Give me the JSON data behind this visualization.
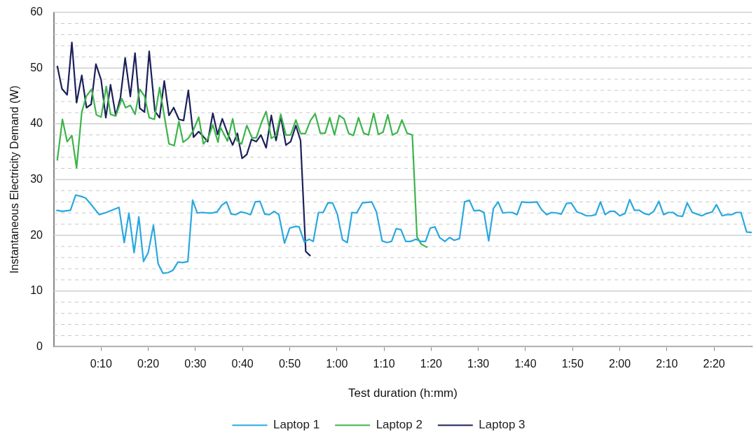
{
  "chart_data": {
    "type": "line",
    "xlabel": "Test duration (h:mm)",
    "ylabel": "Instantaneous Electricity Demand (W)",
    "xlim": [
      0,
      148
    ],
    "ylim": [
      0,
      60
    ],
    "xticks": [
      {
        "value": 10,
        "label": "0:10"
      },
      {
        "value": 20,
        "label": "0:20"
      },
      {
        "value": 30,
        "label": "0:30"
      },
      {
        "value": 40,
        "label": "0:40"
      },
      {
        "value": 50,
        "label": "0:50"
      },
      {
        "value": 60,
        "label": "1:00"
      },
      {
        "value": 70,
        "label": "1:10"
      },
      {
        "value": 80,
        "label": "1:20"
      },
      {
        "value": 90,
        "label": "1:30"
      },
      {
        "value": 100,
        "label": "1:40"
      },
      {
        "value": 110,
        "label": "1:50"
      },
      {
        "value": 120,
        "label": "2:00"
      },
      {
        "value": 130,
        "label": "2:10"
      },
      {
        "value": 140,
        "label": "2:20"
      }
    ],
    "yticks": [
      0,
      {
        "value": 2,
        "label": null
      },
      {
        "value": 4,
        "label": null
      },
      {
        "value": 6,
        "label": null
      },
      {
        "value": 8,
        "label": null
      },
      10,
      {
        "value": 12,
        "label": null
      },
      {
        "value": 14,
        "label": null
      },
      {
        "value": 16,
        "label": null
      },
      {
        "value": 18,
        "label": null
      },
      20,
      {
        "value": 22,
        "label": null
      },
      {
        "value": 24,
        "label": null
      },
      {
        "value": 26,
        "label": null
      },
      {
        "value": 28,
        "label": null
      },
      30,
      {
        "value": 32,
        "label": null
      },
      {
        "value": 34,
        "label": null
      },
      {
        "value": 36,
        "label": null
      },
      {
        "value": 38,
        "label": null
      },
      40,
      {
        "value": 42,
        "label": null
      },
      {
        "value": 44,
        "label": null
      },
      {
        "value": 46,
        "label": null
      },
      {
        "value": 48,
        "label": null
      },
      50,
      {
        "value": 52,
        "label": null
      },
      {
        "value": 54,
        "label": null
      },
      {
        "value": 56,
        "label": null
      },
      {
        "value": 58,
        "label": null
      },
      60
    ],
    "grid": "y",
    "legend": "bottom",
    "marker": "none",
    "series": [
      {
        "name": "Laptop 1",
        "color": "#29a8e0",
        "x": [
          0.5,
          1.8,
          3.5,
          4.6,
          5.7,
          6.7,
          7.8,
          9.6,
          11.1,
          13.8,
          14.9,
          15.9,
          17.0,
          18.0,
          19.0,
          20.0,
          21.1,
          22.1,
          23.1,
          24.2,
          25.2,
          26.3,
          27.3,
          28.4,
          29.4,
          30.4,
          31.5,
          32.6,
          33.6,
          34.6,
          35.6,
          36.6,
          37.6,
          38.6,
          39.6,
          40.7,
          41.7,
          42.7,
          43.7,
          44.7,
          45.7,
          46.7,
          47.7,
          48.9,
          50.0,
          51.3,
          52.0,
          53.1,
          54.1,
          55.0,
          56.1,
          57.1,
          58.1,
          59.1,
          60.1,
          61.2,
          62.2,
          63.2,
          64.2,
          65.4,
          66.4,
          67.4,
          68.4,
          69.6,
          70.6,
          71.6,
          72.6,
          73.6,
          74.6,
          75.6,
          76.8,
          77.8,
          78.8,
          79.8,
          80.8,
          81.8,
          82.9,
          83.9,
          84.9,
          86.0,
          87.1,
          88.1,
          89.1,
          90.2,
          91.2,
          92.2,
          93.2,
          94.2,
          95.2,
          96.2,
          97.2,
          98.2,
          99.2,
          100.2,
          101.3,
          102.4,
          103.5,
          104.5,
          105.5,
          106.6,
          107.6,
          108.7,
          109.7,
          110.9,
          111.9,
          112.9,
          113.9,
          114.9,
          115.9,
          116.9,
          117.9,
          118.9,
          120.0,
          121.1,
          122.1,
          123.1,
          124.1,
          125.2,
          126.2,
          127.2,
          128.3,
          129.3,
          130.3,
          131.3,
          132.3,
          133.3,
          134.3,
          135.4,
          136.4,
          137.4,
          138.4,
          139.6,
          140.5,
          141.7,
          142.7,
          143.7,
          144.7,
          145.7,
          146.9,
          148.0
        ],
        "values": [
          24.5,
          24.3,
          24.5,
          27.2,
          27.0,
          26.7,
          25.6,
          23.7,
          24.1,
          25.0,
          18.7,
          24.0,
          16.9,
          23.3,
          15.3,
          16.9,
          21.8,
          14.9,
          13.2,
          13.3,
          13.7,
          15.2,
          15.1,
          15.3,
          26.3,
          24.0,
          24.1,
          24.0,
          24.0,
          24.2,
          25.4,
          26.0,
          23.8,
          23.7,
          24.2,
          24.0,
          23.7,
          26.0,
          26.1,
          23.8,
          23.7,
          24.3,
          23.7,
          18.6,
          21.3,
          21.6,
          21.5,
          18.8,
          19.3,
          18.9,
          24.1,
          24.1,
          25.8,
          25.8,
          23.8,
          19.2,
          18.7,
          24.1,
          24.0,
          25.8,
          25.9,
          26.0,
          24.2,
          19.0,
          18.7,
          18.9,
          21.2,
          21.0,
          18.9,
          18.9,
          19.3,
          18.9,
          18.9,
          21.3,
          21.5,
          19.6,
          18.9,
          19.6,
          19.1,
          19.4,
          26.0,
          26.3,
          24.4,
          24.5,
          24.1,
          19.0,
          24.8,
          26.0,
          24.0,
          24.1,
          24.1,
          23.7,
          26.0,
          25.9,
          25.9,
          26.0,
          24.5,
          23.7,
          24.1,
          24.0,
          23.8,
          25.7,
          25.8,
          24.2,
          23.9,
          23.5,
          23.5,
          23.7,
          26.0,
          23.7,
          24.3,
          24.3,
          23.5,
          23.9,
          26.4,
          24.5,
          24.5,
          23.9,
          23.7,
          24.3,
          26.1,
          23.7,
          24.1,
          24.1,
          23.5,
          23.4,
          25.8,
          24.1,
          23.8,
          23.5,
          23.9,
          24.2,
          25.5,
          23.5,
          23.7,
          23.7,
          24.1,
          24.1,
          20.6,
          20.5
        ]
      },
      {
        "name": "Laptop 2",
        "color": "#3cb44a",
        "x": [
          0.7,
          1.8,
          2.8,
          3.8,
          4.8,
          5.9,
          6.9,
          8.0,
          9.0,
          10.0,
          11.1,
          12.0,
          13.1,
          14.4,
          15.2,
          16.2,
          17.2,
          18.2,
          19.2,
          20.2,
          21.3,
          22.4,
          24.4,
          25.5,
          26.5,
          27.4,
          28.5,
          29.5,
          30.7,
          31.7,
          32.7,
          33.7,
          34.8,
          35.3,
          36.8,
          37.9,
          38.8,
          39.8,
          40.9,
          42.0,
          42.9,
          44.0,
          45.0,
          46.1,
          47.1,
          48.1,
          49.2,
          50.2,
          51.3,
          52.3,
          53.3,
          54.4,
          55.4,
          56.5,
          57.5,
          58.5,
          59.5,
          60.5,
          61.5,
          62.5,
          63.5,
          64.6,
          65.7,
          66.7,
          67.8,
          68.8,
          69.8,
          70.8,
          71.8,
          72.8,
          73.8,
          74.9,
          76.0,
          77.0,
          77.9,
          79.2
        ],
        "values": [
          33.4,
          40.8,
          36.8,
          37.9,
          32.1,
          42.1,
          45.0,
          46.2,
          41.6,
          41.2,
          46.7,
          41.7,
          41.4,
          44.5,
          42.9,
          43.3,
          41.7,
          46.2,
          45.0,
          41.1,
          40.8,
          46.5,
          36.4,
          36.1,
          40.4,
          36.7,
          37.4,
          38.7,
          41.2,
          36.4,
          37.4,
          39.8,
          36.7,
          39.4,
          36.9,
          40.9,
          37.0,
          36.4,
          39.7,
          37.5,
          37.5,
          40.2,
          42.2,
          37.4,
          37.9,
          41.7,
          38.0,
          38.0,
          40.7,
          38.3,
          38.2,
          40.6,
          41.8,
          38.3,
          38.3,
          41.1,
          38.0,
          41.5,
          40.9,
          38.3,
          37.9,
          41.1,
          38.3,
          38.0,
          41.9,
          38.1,
          38.5,
          41.6,
          38.0,
          38.4,
          40.7,
          38.3,
          38.0,
          19.7,
          18.4,
          17.8
        ]
      },
      {
        "name": "Laptop 3",
        "color": "#1b1f5a",
        "x": [
          0.7,
          1.7,
          2.8,
          3.8,
          4.8,
          5.9,
          6.9,
          7.9,
          8.9,
          10.0,
          11.0,
          12.0,
          13.1,
          14.1,
          15.1,
          16.2,
          17.2,
          18.2,
          19.2,
          20.2,
          21.4,
          22.4,
          23.4,
          24.4,
          25.4,
          26.5,
          27.5,
          28.5,
          29.6,
          30.7,
          31.6,
          32.6,
          33.7,
          34.7,
          35.7,
          36.9,
          37.9,
          38.9,
          39.9,
          40.9,
          41.9,
          42.9,
          43.9,
          45.0,
          46.1,
          47.1,
          48.1,
          49.2,
          50.2,
          51.3,
          52.3,
          53.4,
          54.4
        ],
        "values": [
          50.4,
          46.3,
          45.2,
          54.6,
          43.8,
          48.7,
          42.9,
          43.5,
          50.7,
          47.9,
          41.1,
          47.0,
          41.5,
          44.7,
          51.8,
          44.9,
          52.7,
          42.8,
          42.1,
          53.0,
          42.3,
          41.1,
          47.7,
          41.5,
          42.9,
          40.8,
          40.6,
          46.0,
          37.6,
          38.6,
          37.8,
          36.8,
          41.9,
          38.1,
          40.9,
          38.1,
          36.2,
          38.3,
          33.8,
          34.5,
          37.2,
          36.8,
          38.0,
          35.7,
          41.5,
          37.0,
          41.3,
          36.2,
          36.8,
          39.7,
          37.0,
          17.1,
          16.3
        ]
      }
    ]
  }
}
